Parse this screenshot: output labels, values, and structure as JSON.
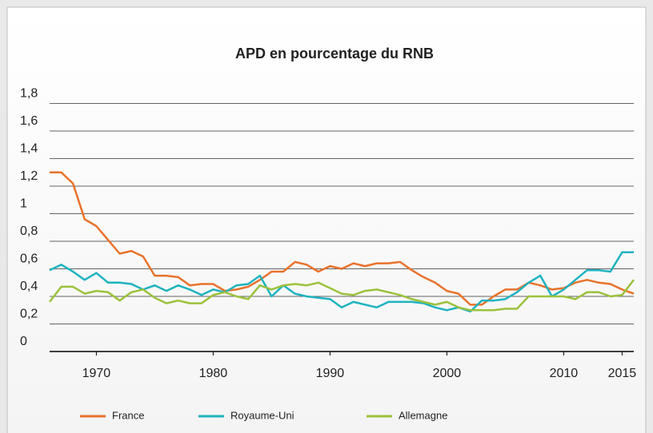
{
  "chart_data": {
    "type": "line",
    "title": "APD en pourcentage du RNB",
    "x": [
      1966,
      1967,
      1968,
      1969,
      1970,
      1971,
      1972,
      1973,
      1974,
      1975,
      1976,
      1977,
      1978,
      1979,
      1980,
      1981,
      1982,
      1983,
      1984,
      1985,
      1986,
      1987,
      1988,
      1989,
      1990,
      1991,
      1992,
      1993,
      1994,
      1995,
      1996,
      1997,
      1998,
      1999,
      2000,
      2001,
      2002,
      2003,
      2004,
      2005,
      2006,
      2007,
      2008,
      2009,
      2010,
      2011,
      2012,
      2013,
      2014,
      2015,
      2016
    ],
    "series": [
      {
        "name": "France",
        "color": "#e8722c",
        "values": [
          1.3,
          1.3,
          1.22,
          0.96,
          0.91,
          0.81,
          0.71,
          0.73,
          0.69,
          0.55,
          0.55,
          0.54,
          0.48,
          0.49,
          0.49,
          0.44,
          0.45,
          0.47,
          0.52,
          0.58,
          0.58,
          0.65,
          0.63,
          0.58,
          0.62,
          0.6,
          0.64,
          0.62,
          0.64,
          0.64,
          0.65,
          0.59,
          0.54,
          0.5,
          0.44,
          0.42,
          0.34,
          0.34,
          0.4,
          0.45,
          0.45,
          0.5,
          0.48,
          0.45,
          0.46,
          0.5,
          0.52,
          0.5,
          0.49,
          0.45,
          0.42
        ]
      },
      {
        "name": "Royaume-Uni",
        "color": "#1fb3c0",
        "values": [
          0.59,
          0.63,
          0.58,
          0.52,
          0.57,
          0.5,
          0.5,
          0.49,
          0.45,
          0.48,
          0.44,
          0.48,
          0.45,
          0.41,
          0.45,
          0.43,
          0.48,
          0.49,
          0.55,
          0.4,
          0.48,
          0.42,
          0.4,
          0.39,
          0.38,
          0.32,
          0.36,
          0.34,
          0.32,
          0.36,
          0.36,
          0.36,
          0.35,
          0.32,
          0.3,
          0.32,
          0.29,
          0.37,
          0.37,
          0.38,
          0.43,
          0.5,
          0.55,
          0.4,
          0.45,
          0.52,
          0.59,
          0.59,
          0.58,
          0.72,
          0.72
        ]
      },
      {
        "name": "Allemagne",
        "color": "#9bc23c",
        "values": [
          0.36,
          0.47,
          0.47,
          0.42,
          0.44,
          0.43,
          0.37,
          0.43,
          0.45,
          0.39,
          0.35,
          0.37,
          0.35,
          0.35,
          0.41,
          0.43,
          0.4,
          0.38,
          0.48,
          0.45,
          0.48,
          0.49,
          0.48,
          0.5,
          0.46,
          0.42,
          0.41,
          0.44,
          0.45,
          0.43,
          0.41,
          0.38,
          0.36,
          0.34,
          0.36,
          0.32,
          0.3,
          0.3,
          0.3,
          0.31,
          0.31,
          0.4,
          0.4,
          0.4,
          0.4,
          0.38,
          0.43,
          0.43,
          0.4,
          0.41,
          0.52
        ]
      }
    ],
    "xlim": [
      1966,
      2016
    ],
    "xticks": [
      1970,
      1980,
      1990,
      2000,
      2010,
      2015
    ],
    "ylim": [
      0,
      1.8
    ],
    "yticks": [
      0,
      {
        "value": 0.2,
        "label": "0,2"
      },
      {
        "value": 0.4,
        "label": "0,4"
      },
      {
        "value": 0.6,
        "label": "0,6"
      },
      {
        "value": 0.8,
        "label": "0,8"
      },
      1,
      {
        "value": 1.2,
        "label": "1,2"
      },
      {
        "value": 1.4,
        "label": "1,4"
      },
      {
        "value": 1.6,
        "label": "1,6"
      },
      {
        "value": 1.8,
        "label": "1,8"
      }
    ],
    "grid": true,
    "legend": "bottom"
  }
}
